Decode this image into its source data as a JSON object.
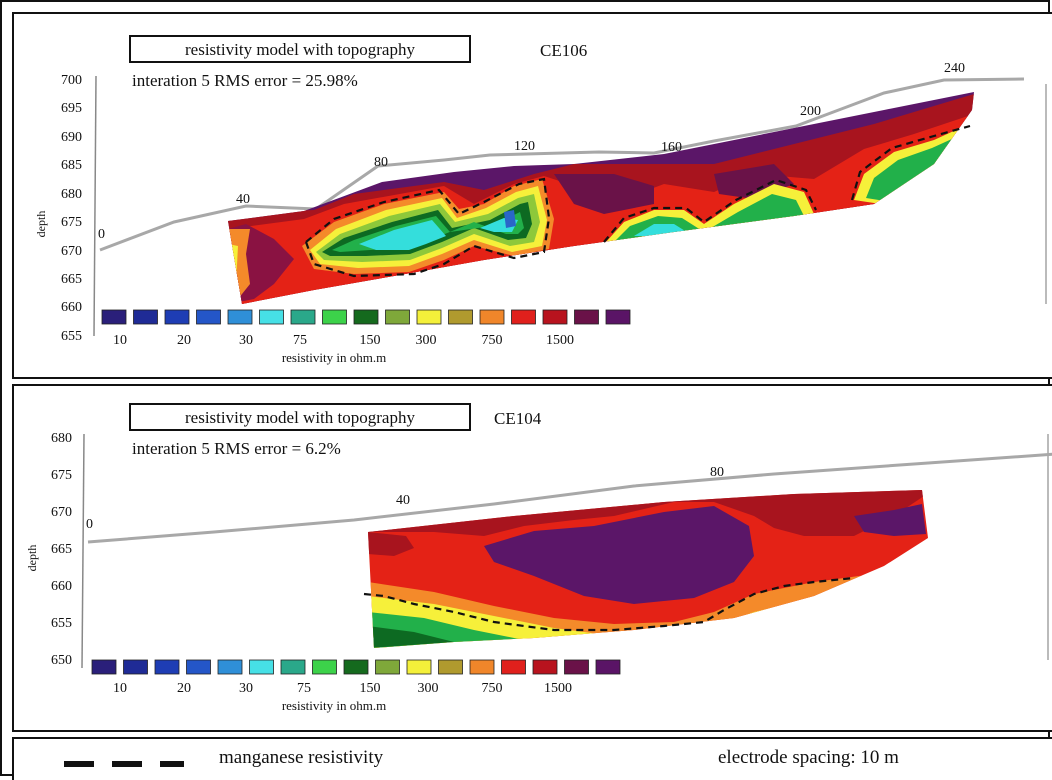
{
  "panels": [
    {
      "title_box": "resistivity model with topography",
      "line_id": "CE106",
      "rms_text": "interation 5 RMS error = 25.98%",
      "y_axis_label": "depth",
      "y_ticks": [
        "700",
        "695",
        "690",
        "685",
        "680",
        "675",
        "670",
        "665",
        "660",
        "655"
      ],
      "distance_labels": [
        "0",
        "40",
        "80",
        "120",
        "160",
        "200",
        "240"
      ],
      "scale_labels": [
        "10",
        "20",
        "30",
        "75",
        "150",
        "300",
        "750",
        "1500"
      ],
      "scale_title": "resistivity in ohm.m"
    },
    {
      "title_box": "resistivity model with topography",
      "line_id": "CE104",
      "rms_text": "interation 5 RMS error = 6.2%",
      "y_axis_label": "depth",
      "y_ticks": [
        "680",
        "675",
        "670",
        "665",
        "660",
        "655",
        "650"
      ],
      "distance_labels": [
        "0",
        "40",
        "80"
      ],
      "scale_labels": [
        "10",
        "20",
        "30",
        "75",
        "150",
        "300",
        "750",
        "1500"
      ],
      "scale_title": "resistivity in ohm.m"
    }
  ],
  "color_scale": [
    "#2a1f7a",
    "#1f2b96",
    "#1e3db4",
    "#2456c8",
    "#2f8fd8",
    "#46e0e6",
    "#2aa88a",
    "#3cd24a",
    "#156a1e",
    "#7fa83a",
    "#f4f03a",
    "#b09a2e",
    "#f0862a",
    "#e0201c",
    "#b8131e",
    "#6a1248",
    "#5a1466"
  ],
  "model_colors": {
    "violet": "#5b1668",
    "darkred": "#a8141e",
    "red": "#e42216",
    "orange": "#f48a2a",
    "yellow": "#f6f03a",
    "ltgreen": "#8ec83a",
    "green": "#22b04a",
    "dkgreen": "#0d6a22",
    "cyan": "#34dedc",
    "blue": "#2a66c8",
    "topo": "#a8a8a8"
  },
  "footer": {
    "legend_label": "manganese resistivity",
    "spacing_label": "electrode spacing: 10 m"
  }
}
